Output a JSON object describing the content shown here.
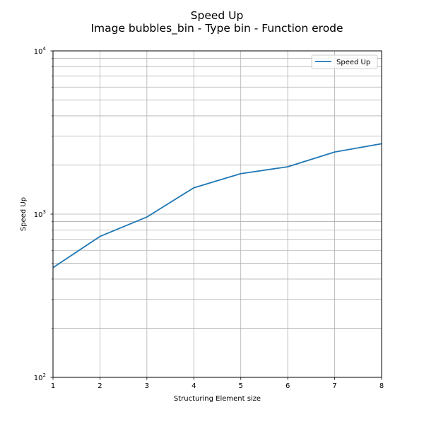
{
  "chart_data": {
    "type": "line",
    "title": "Speed Up",
    "subtitle": "Image bubbles_bin - Type bin - Function erode",
    "xlabel": "Structuring Element size",
    "ylabel": "Speed Up",
    "x": [
      1,
      2,
      3,
      4,
      5,
      6,
      7,
      8
    ],
    "series": [
      {
        "name": "Speed Up",
        "values": [
          470,
          730,
          960,
          1450,
          1770,
          1950,
          2400,
          2700
        ],
        "color": "#1f77b4"
      }
    ],
    "xlim": [
      1,
      8
    ],
    "ylim": [
      100,
      10000
    ],
    "yscale": "log",
    "x_ticks": [
      "1",
      "2",
      "3",
      "4",
      "5",
      "6",
      "7",
      "8"
    ],
    "y_ticks": [
      {
        "base": "10",
        "exp": "2"
      },
      {
        "base": "10",
        "exp": "3"
      },
      {
        "base": "10",
        "exp": "4"
      }
    ],
    "grid": true,
    "legend": "top-right"
  }
}
